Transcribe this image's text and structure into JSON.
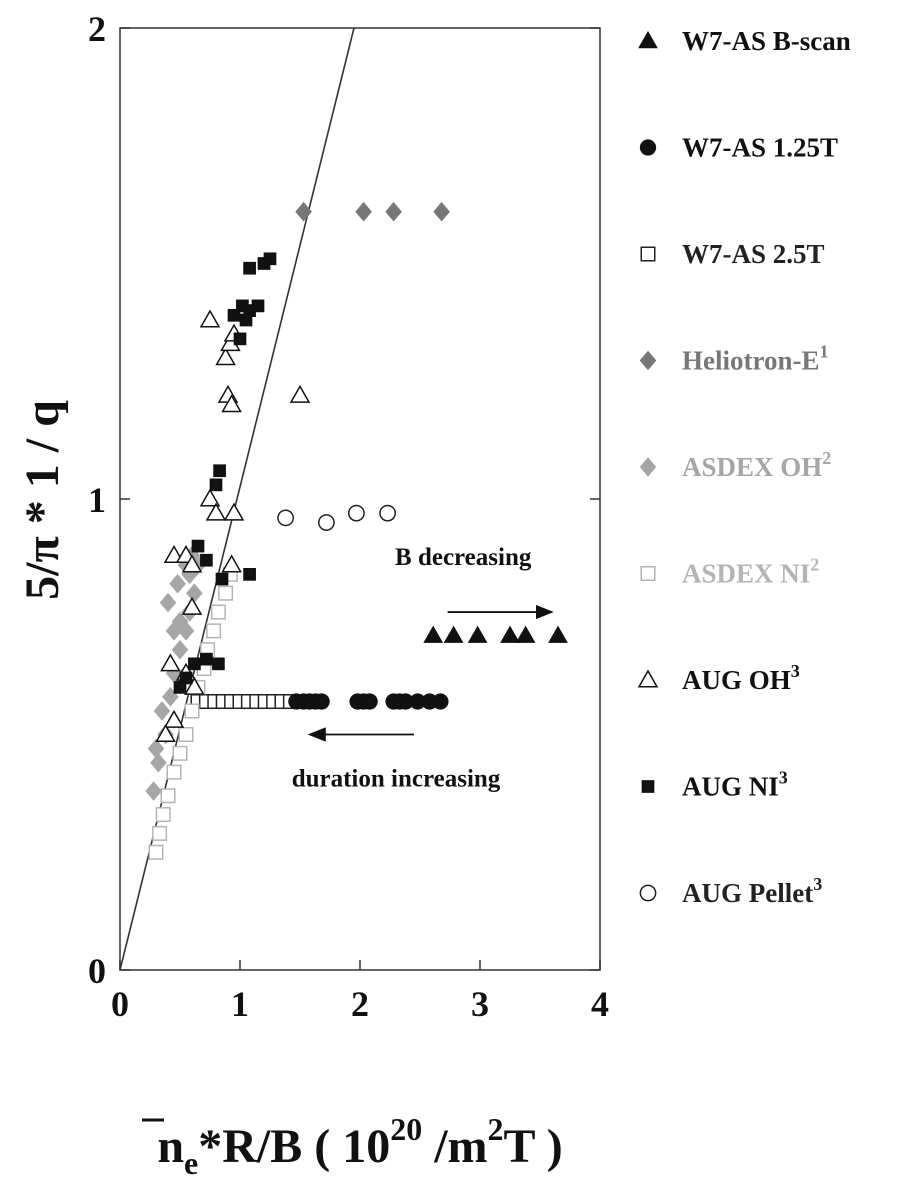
{
  "chart_data": {
    "type": "scatter",
    "xlabel": {
      "base": "n",
      "sub": "e",
      "mid": "*R/B ( 10",
      "sup1": "20",
      "mid2": " /m",
      "sup2": "2",
      "end": "T )"
    },
    "ylabel": "5/π * 1 / q",
    "xlim": [
      0,
      4
    ],
    "ylim": [
      0,
      2
    ],
    "x_ticks": [
      0,
      1,
      2,
      3,
      4
    ],
    "y_ticks": [
      0,
      1,
      2
    ],
    "grid": false,
    "legend_position": "right",
    "reference_line": {
      "from": [
        0,
        0
      ],
      "to": [
        1.95,
        2
      ]
    },
    "annotations": [
      {
        "text": "B decreasing",
        "x": 2.86,
        "y": 0.86
      },
      {
        "text": "duration increasing",
        "x": 2.3,
        "y": 0.39
      }
    ],
    "arrows": [
      {
        "from": [
          2.73,
          0.76
        ],
        "to": [
          3.6,
          0.76
        ]
      },
      {
        "from": [
          2.45,
          0.5
        ],
        "to": [
          1.58,
          0.5
        ]
      }
    ],
    "series": [
      {
        "name": "W7-AS B-scan",
        "sup": "",
        "marker": "filled-triangle",
        "color": "#111111",
        "points": [
          [
            2.61,
            0.71
          ],
          [
            2.78,
            0.71
          ],
          [
            2.98,
            0.71
          ],
          [
            3.25,
            0.71
          ],
          [
            3.38,
            0.71
          ],
          [
            3.65,
            0.71
          ]
        ]
      },
      {
        "name": "W7-AS 1.25T",
        "sup": "",
        "marker": "filled-circle",
        "color": "#111111",
        "points": [
          [
            1.47,
            0.57
          ],
          [
            1.53,
            0.57
          ],
          [
            1.58,
            0.57
          ],
          [
            1.63,
            0.57
          ],
          [
            1.68,
            0.57
          ],
          [
            1.98,
            0.57
          ],
          [
            2.03,
            0.57
          ],
          [
            2.08,
            0.57
          ],
          [
            2.28,
            0.57
          ],
          [
            2.33,
            0.57
          ],
          [
            2.38,
            0.57
          ],
          [
            2.48,
            0.57
          ],
          [
            2.58,
            0.57
          ],
          [
            2.67,
            0.57
          ]
        ]
      },
      {
        "name": "W7-AS 2.5T",
        "sup": "",
        "marker": "open-square",
        "color": "#222222",
        "points": [
          [
            0.65,
            0.57
          ],
          [
            0.72,
            0.57
          ],
          [
            0.79,
            0.57
          ],
          [
            0.86,
            0.57
          ],
          [
            0.93,
            0.57
          ],
          [
            1.0,
            0.57
          ],
          [
            1.07,
            0.57
          ],
          [
            1.14,
            0.57
          ],
          [
            1.21,
            0.57
          ],
          [
            1.28,
            0.57
          ],
          [
            1.35,
            0.57
          ],
          [
            1.42,
            0.57
          ]
        ]
      },
      {
        "name": "Heliotron-E",
        "sup": "1",
        "marker": "filled-diamond",
        "color": "#777777",
        "points": [
          [
            1.53,
            1.61
          ],
          [
            2.03,
            1.61
          ],
          [
            2.28,
            1.61
          ],
          [
            2.68,
            1.61
          ]
        ]
      },
      {
        "name": "ASDEX OH",
        "sup": "2",
        "marker": "filled-diamond",
        "color": "#a6a6a6",
        "points": [
          [
            0.28,
            0.38
          ],
          [
            0.32,
            0.44
          ],
          [
            0.38,
            0.5
          ],
          [
            0.42,
            0.58
          ],
          [
            0.45,
            0.63
          ],
          [
            0.5,
            0.68
          ],
          [
            0.55,
            0.72
          ],
          [
            0.58,
            0.76
          ],
          [
            0.62,
            0.8
          ],
          [
            0.48,
            0.82
          ],
          [
            0.55,
            0.86
          ],
          [
            0.6,
            0.88
          ],
          [
            0.4,
            0.78
          ],
          [
            0.5,
            0.74
          ],
          [
            0.58,
            0.84
          ],
          [
            0.65,
            0.86
          ],
          [
            0.45,
            0.72
          ],
          [
            0.52,
            0.62
          ],
          [
            0.35,
            0.55
          ],
          [
            0.3,
            0.47
          ]
        ]
      },
      {
        "name": "ASDEX NI",
        "sup": "2",
        "marker": "open-square",
        "color": "#b4b4b4",
        "points": [
          [
            0.3,
            0.25
          ],
          [
            0.33,
            0.29
          ],
          [
            0.36,
            0.33
          ],
          [
            0.4,
            0.37
          ],
          [
            0.45,
            0.42
          ],
          [
            0.5,
            0.46
          ],
          [
            0.55,
            0.5
          ],
          [
            0.6,
            0.55
          ],
          [
            0.65,
            0.6
          ],
          [
            0.7,
            0.64
          ],
          [
            0.73,
            0.68
          ],
          [
            0.78,
            0.72
          ],
          [
            0.82,
            0.76
          ],
          [
            0.88,
            0.8
          ],
          [
            0.92,
            0.84
          ]
        ]
      },
      {
        "name": "AUG OH",
        "sup": "3",
        "marker": "open-triangle",
        "color": "#111111",
        "points": [
          [
            0.75,
            1.38
          ],
          [
            0.88,
            1.3
          ],
          [
            0.92,
            1.33
          ],
          [
            0.95,
            1.35
          ],
          [
            0.9,
            1.22
          ],
          [
            0.93,
            1.2
          ],
          [
            1.5,
            1.22
          ],
          [
            0.75,
            1.0
          ],
          [
            0.8,
            0.97
          ],
          [
            0.95,
            0.97
          ],
          [
            0.45,
            0.88
          ],
          [
            0.55,
            0.88
          ],
          [
            0.6,
            0.86
          ],
          [
            0.93,
            0.86
          ],
          [
            0.6,
            0.77
          ],
          [
            0.42,
            0.65
          ],
          [
            0.55,
            0.63
          ],
          [
            0.62,
            0.6
          ],
          [
            0.45,
            0.53
          ],
          [
            0.38,
            0.5
          ]
        ]
      },
      {
        "name": "AUG NI",
        "sup": "3",
        "marker": "filled-square",
        "color": "#111111",
        "points": [
          [
            1.08,
            1.49
          ],
          [
            1.2,
            1.5
          ],
          [
            1.25,
            1.51
          ],
          [
            0.95,
            1.39
          ],
          [
            1.02,
            1.41
          ],
          [
            1.08,
            1.4
          ],
          [
            1.15,
            1.41
          ],
          [
            1.05,
            1.38
          ],
          [
            1.0,
            1.34
          ],
          [
            0.83,
            1.06
          ],
          [
            0.8,
            1.03
          ],
          [
            0.65,
            0.9
          ],
          [
            0.72,
            0.87
          ],
          [
            0.85,
            0.83
          ],
          [
            1.08,
            0.84
          ],
          [
            0.62,
            0.65
          ],
          [
            0.72,
            0.66
          ],
          [
            0.82,
            0.65
          ],
          [
            0.55,
            0.62
          ],
          [
            0.5,
            0.6
          ]
        ]
      },
      {
        "name": "AUG Pellet",
        "sup": "3",
        "marker": "open-circle",
        "color": "#222222",
        "points": [
          [
            1.38,
            0.96
          ],
          [
            1.72,
            0.95
          ],
          [
            1.97,
            0.97
          ],
          [
            2.23,
            0.97
          ]
        ]
      }
    ]
  }
}
